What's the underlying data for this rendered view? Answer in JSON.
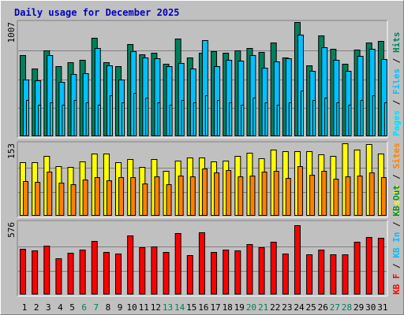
{
  "colors": {
    "background": "#c0c0c0",
    "hits": "#00805c",
    "files": "#00c0ff",
    "pages": "#00e0ff",
    "visits": "#ffff00",
    "sites": "#ff8000",
    "kbytes": "#ff0000",
    "title": "#0000c0",
    "weekend_label": "#00805c"
  },
  "chart_data": {
    "type": "bar",
    "title": "Daily usage for December 2025",
    "x": [
      1,
      2,
      3,
      4,
      5,
      6,
      7,
      8,
      9,
      10,
      11,
      12,
      13,
      14,
      15,
      16,
      17,
      18,
      19,
      20,
      21,
      22,
      23,
      24,
      25,
      26,
      27,
      28,
      29,
      30,
      31
    ],
    "weekend_days": [
      6,
      7,
      13,
      14,
      20,
      21,
      27,
      28
    ],
    "grid": true,
    "panels": [
      {
        "name": "requests",
        "max_label": "1007",
        "ymax": 1007,
        "legend": [
          "Pages",
          "Files",
          "Hits"
        ],
        "series": [
          {
            "name": "Hits",
            "values": [
              715,
              596,
              757,
              615,
              651,
              676,
              866,
              654,
              621,
              815,
              721,
              733,
              640,
              858,
              695,
              738,
              749,
              734,
              760,
              780,
              746,
              823,
              695,
              1007,
              627,
              891,
              769,
              637,
              764,
              829,
              843
            ]
          },
          {
            "name": "Files",
            "values": [
              498,
              494,
              715,
              479,
              548,
              557,
              781,
              622,
              503,
              753,
              697,
              690,
              615,
              643,
              600,
              844,
              615,
              676,
              667,
              713,
              603,
              658,
              685,
              893,
              574,
              782,
              672,
              573,
              711,
              773,
              683
            ]
          },
          {
            "name": "Pages",
            "values": [
              320,
              280,
              300,
              280,
              320,
              300,
              280,
              360,
              300,
              380,
              340,
              300,
              280,
              320,
              300,
              360,
              320,
              300,
              280,
              340,
              300,
              280,
              300,
              400,
              320,
              340,
              300,
              280,
              320,
              360,
              300
            ]
          }
        ]
      },
      {
        "name": "visits",
        "max_label": "153",
        "ymax": 153,
        "legend": [
          "Visits",
          "Sites"
        ],
        "series": [
          {
            "name": "Visits",
            "values": [
              113,
              113,
              127,
              105,
              103,
              115,
              132,
              132,
              113,
              120,
              103,
              120,
              95,
              116,
              123,
              123,
              115,
              117,
              126,
              133,
              122,
              139,
              136,
              137,
              137,
              129,
              126,
              153,
              139,
              151,
              132
            ]
          },
          {
            "name": "Sites",
            "values": [
              74,
              72,
              93,
              70,
              66,
              76,
              82,
              75,
              81,
              81,
              69,
              83,
              67,
              84,
              83,
              100,
              92,
              97,
              83,
              85,
              93,
              95,
              79,
              105,
              87,
              95,
              78,
              83,
              84,
              91,
              81
            ]
          }
        ]
      },
      {
        "name": "kbytes",
        "max_label": "576",
        "ymax": 576,
        "legend": [
          "KB F",
          "KB In",
          "KB Out"
        ],
        "series": [
          {
            "name": "KB F",
            "values": [
              366,
              353,
              390,
              291,
              333,
              354,
              425,
              339,
              324,
              471,
              373,
              382,
              336,
              488,
              315,
              494,
              339,
              354,
              350,
              402,
              374,
              420,
              323,
              554,
              317,
              357,
              322,
              320,
              418,
              455,
              453
            ]
          },
          {
            "name": "KB In",
            "values": [
              0,
              0,
              0,
              0,
              0,
              0,
              0,
              0,
              0,
              0,
              0,
              0,
              0,
              0,
              0,
              0,
              0,
              0,
              0,
              0,
              0,
              0,
              0,
              0,
              0,
              0,
              0,
              0,
              0,
              0,
              0
            ]
          },
          {
            "name": "KB Out",
            "values": [
              0,
              0,
              0,
              0,
              0,
              0,
              0,
              0,
              0,
              0,
              0,
              0,
              0,
              0,
              0,
              0,
              0,
              0,
              0,
              0,
              0,
              0,
              0,
              0,
              0,
              0,
              0,
              0,
              0,
              0,
              0
            ]
          }
        ]
      }
    ]
  }
}
